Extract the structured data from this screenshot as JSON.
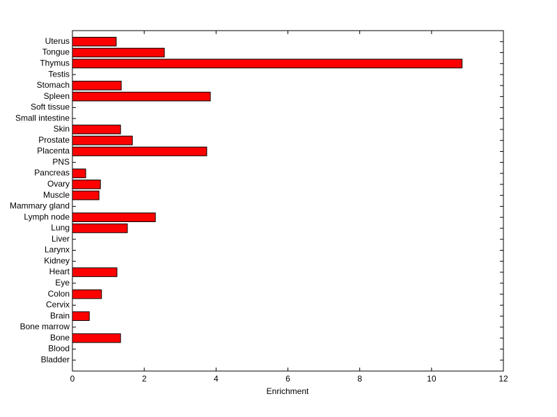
{
  "chart_data": {
    "type": "barh",
    "x_label": "Enrichment",
    "categories": [
      "Bladder",
      "Blood",
      "Bone",
      "Bone marrow",
      "Brain",
      "Cervix",
      "Colon",
      "Eye",
      "Heart",
      "Kidney",
      "Larynx",
      "Liver",
      "Lung",
      "Lymph node",
      "Mammary gland",
      "Muscle",
      "Ovary",
      "Pancreas",
      "PNS",
      "Placenta",
      "Prostate",
      "Skin",
      "Small intestine",
      "Soft tissue",
      "Spleen",
      "Stomach",
      "Testis",
      "Thymus",
      "Tongue",
      "Uterus"
    ],
    "values": [
      0,
      0,
      1.34,
      0,
      0.47,
      0,
      0.81,
      0,
      1.24,
      0,
      0,
      0,
      1.53,
      2.31,
      0,
      0.74,
      0.78,
      0.37,
      0,
      3.74,
      1.67,
      1.34,
      0,
      0,
      3.84,
      1.36,
      0,
      10.85,
      2.56,
      1.22
    ],
    "color": "#ff0000",
    "xlim": [
      0,
      12
    ],
    "xticks": [
      0,
      2,
      4,
      6,
      8,
      10,
      12
    ]
  }
}
